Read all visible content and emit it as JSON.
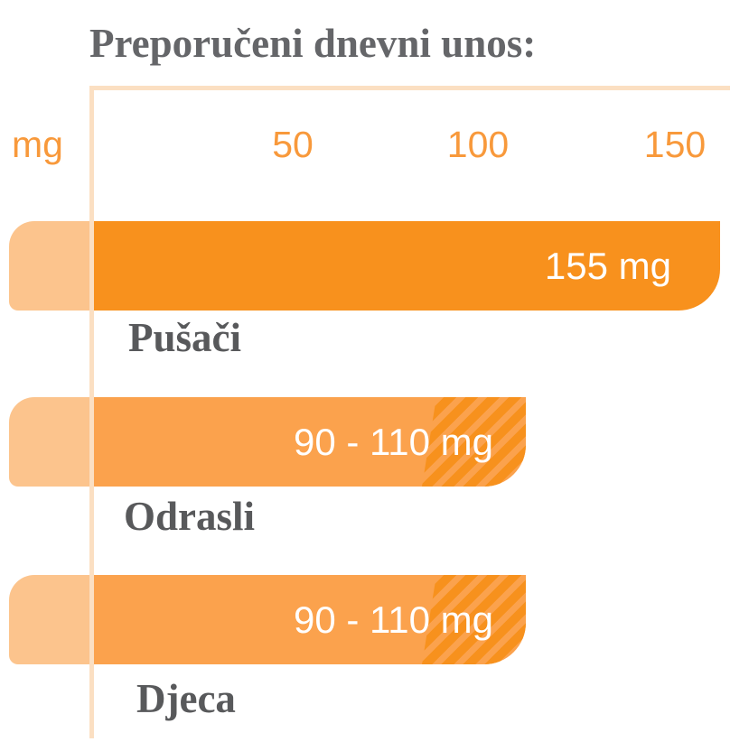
{
  "title": "Preporučeni dnevni unos:",
  "axis": {
    "unit_label": "mg",
    "ticks": [
      "50",
      "100",
      "150"
    ]
  },
  "bars": [
    {
      "label": "Pušači",
      "value_label": "155 mg"
    },
    {
      "label": "Odrasli",
      "value_label": "90 - 110 mg"
    },
    {
      "label": "Djeca",
      "value_label": "90 - 110 mg"
    }
  ],
  "colors": {
    "bar_solid_orange": "#F8911D",
    "bar_range_orange": "#FBA24D",
    "hatch_stripe_orange": "#F7911D",
    "bar_cap_peach": "#FCC48D",
    "axis_line_peach": "#FBDFC2",
    "tick_text_orange": "#F8993B",
    "title_gray": "#656669",
    "category_gray": "#58595B",
    "value_text_white": "#FFFFFF",
    "background": "#FFFFFF"
  },
  "chart_data": {
    "type": "bar",
    "orientation": "horizontal",
    "title": "Preporučeni dnevni unos:",
    "xlabel": "mg",
    "ylabel": "",
    "x_ticks": [
      50,
      100,
      150
    ],
    "xlim": [
      0,
      165
    ],
    "grid": "off",
    "legend": "none",
    "categories": [
      "Pušači",
      "Odrasli",
      "Djeca"
    ],
    "series": [
      {
        "name": "Preporučeni dnevni unos",
        "values": [
          {
            "category": "Pušači",
            "value": 155,
            "min": 155,
            "max": 155,
            "label": "155 mg",
            "style": "solid"
          },
          {
            "category": "Odrasli",
            "value": 110,
            "min": 90,
            "max": 110,
            "label": "90 - 110 mg",
            "style": "solid with hatched range 90-110"
          },
          {
            "category": "Djeca",
            "value": 110,
            "min": 90,
            "max": 110,
            "label": "90 - 110 mg",
            "style": "solid with hatched range 90-110"
          }
        ]
      }
    ],
    "annotations": "Range bars for Odrasli and Djeca show a diagonally hatched segment between ~90 and ~110 mg; Pušači bar is solid to 155 mg."
  }
}
